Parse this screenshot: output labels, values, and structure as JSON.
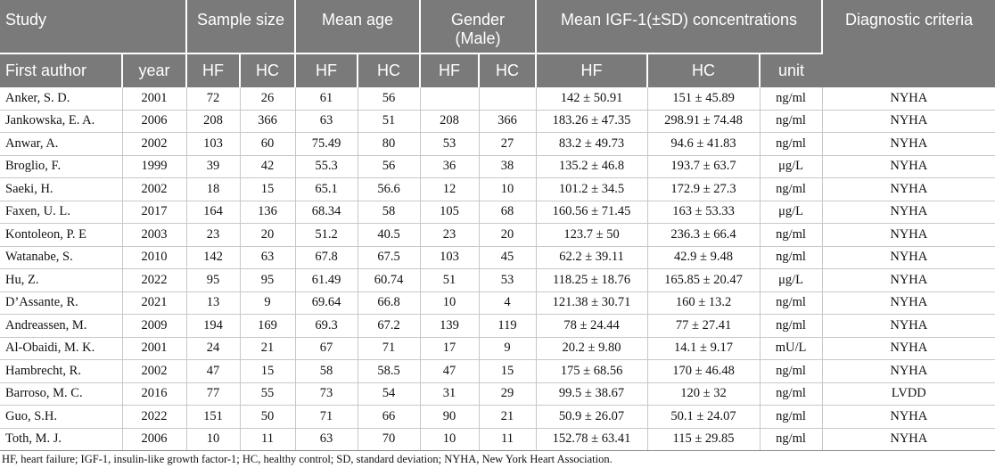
{
  "header": {
    "study": "Study",
    "sample_size": "Sample size",
    "mean_age": "Mean age",
    "gender": "Gender (Male)",
    "igf": "Mean IGF-1(±SD) concentrations",
    "diagnostic": "Diagnostic criteria",
    "first_author": "First author",
    "year": "year",
    "hf": "HF",
    "hc": "HC",
    "unit": "unit"
  },
  "rows": [
    {
      "author": "Anker, S. D.",
      "year": "2001",
      "ss_hf": "72",
      "ss_hc": "26",
      "age_hf": "61",
      "age_hc": "56",
      "g_hf": "",
      "g_hc": "",
      "igf_hf": "142 ± 50.91",
      "igf_hc": "151 ± 45.89",
      "unit": "ng/ml",
      "diag": "NYHA"
    },
    {
      "author": "Jankowska, E. A.",
      "year": "2006",
      "ss_hf": "208",
      "ss_hc": "366",
      "age_hf": "63",
      "age_hc": "51",
      "g_hf": "208",
      "g_hc": "366",
      "igf_hf": "183.26 ± 47.35",
      "igf_hc": "298.91 ± 74.48",
      "unit": "ng/ml",
      "diag": "NYHA"
    },
    {
      "author": "Anwar, A.",
      "year": "2002",
      "ss_hf": "103",
      "ss_hc": "60",
      "age_hf": "75.49",
      "age_hc": "80",
      "g_hf": "53",
      "g_hc": "27",
      "igf_hf": "83.2 ± 49.73",
      "igf_hc": "94.6 ± 41.83",
      "unit": "ng/ml",
      "diag": "NYHA"
    },
    {
      "author": "Broglio, F.",
      "year": "1999",
      "ss_hf": "39",
      "ss_hc": "42",
      "age_hf": "55.3",
      "age_hc": "56",
      "g_hf": "36",
      "g_hc": "38",
      "igf_hf": "135.2 ± 46.8",
      "igf_hc": "193.7 ± 63.7",
      "unit": "μg/L",
      "diag": "NYHA"
    },
    {
      "author": "Saeki, H.",
      "year": "2002",
      "ss_hf": "18",
      "ss_hc": "15",
      "age_hf": "65.1",
      "age_hc": "56.6",
      "g_hf": "12",
      "g_hc": "10",
      "igf_hf": "101.2 ± 34.5",
      "igf_hc": "172.9 ± 27.3",
      "unit": "ng/ml",
      "diag": "NYHA"
    },
    {
      "author": "Faxen, U. L.",
      "year": "2017",
      "ss_hf": "164",
      "ss_hc": "136",
      "age_hf": "68.34",
      "age_hc": "58",
      "g_hf": "105",
      "g_hc": "68",
      "igf_hf": "160.56 ± 71.45",
      "igf_hc": "163 ± 53.33",
      "unit": "μg/L",
      "diag": "NYHA"
    },
    {
      "author": "Kontoleon, P. E",
      "year": "2003",
      "ss_hf": "23",
      "ss_hc": "20",
      "age_hf": "51.2",
      "age_hc": "40.5",
      "g_hf": "23",
      "g_hc": "20",
      "igf_hf": "123.7 ± 50",
      "igf_hc": "236.3 ± 66.4",
      "unit": "ng/ml",
      "diag": "NYHA"
    },
    {
      "author": "Watanabe, S.",
      "year": "2010",
      "ss_hf": "142",
      "ss_hc": "63",
      "age_hf": "67.8",
      "age_hc": "67.5",
      "g_hf": "103",
      "g_hc": "45",
      "igf_hf": "62.2 ± 39.11",
      "igf_hc": "42.9 ± 9.48",
      "unit": "ng/ml",
      "diag": "NYHA"
    },
    {
      "author": "Hu, Z.",
      "year": "2022",
      "ss_hf": "95",
      "ss_hc": "95",
      "age_hf": "61.49",
      "age_hc": "60.74",
      "g_hf": "51",
      "g_hc": "53",
      "igf_hf": "118.25 ± 18.76",
      "igf_hc": "165.85 ± 20.47",
      "unit": "μg/L",
      "diag": "NYHA"
    },
    {
      "author": "D’Assante, R.",
      "year": "2021",
      "ss_hf": "13",
      "ss_hc": "9",
      "age_hf": "69.64",
      "age_hc": "66.8",
      "g_hf": "10",
      "g_hc": "4",
      "igf_hf": "121.38 ± 30.71",
      "igf_hc": "160 ± 13.2",
      "unit": "ng/ml",
      "diag": "NYHA"
    },
    {
      "author": "Andreassen, M.",
      "year": "2009",
      "ss_hf": "194",
      "ss_hc": "169",
      "age_hf": "69.3",
      "age_hc": "67.2",
      "g_hf": "139",
      "g_hc": "119",
      "igf_hf": "78 ± 24.44",
      "igf_hc": "77 ± 27.41",
      "unit": "ng/ml",
      "diag": "NYHA"
    },
    {
      "author": "Al-Obaidi, M. K.",
      "year": "2001",
      "ss_hf": "24",
      "ss_hc": "21",
      "age_hf": "67",
      "age_hc": "71",
      "g_hf": "17",
      "g_hc": "9",
      "igf_hf": "20.2 ± 9.80",
      "igf_hc": "14.1 ± 9.17",
      "unit": "mU/L",
      "diag": "NYHA"
    },
    {
      "author": "Hambrecht, R.",
      "year": "2002",
      "ss_hf": "47",
      "ss_hc": "15",
      "age_hf": "58",
      "age_hc": "58.5",
      "g_hf": "47",
      "g_hc": "15",
      "igf_hf": "175 ± 68.56",
      "igf_hc": "170 ± 46.48",
      "unit": "ng/ml",
      "diag": "NYHA"
    },
    {
      "author": "Barroso, M. C.",
      "year": "2016",
      "ss_hf": "77",
      "ss_hc": "55",
      "age_hf": "73",
      "age_hc": "54",
      "g_hf": "31",
      "g_hc": "29",
      "igf_hf": "99.5 ± 38.67",
      "igf_hc": "120 ± 32",
      "unit": "ng/ml",
      "diag": "LVDD"
    },
    {
      "author": "Guo, S.H.",
      "year": "2022",
      "ss_hf": "151",
      "ss_hc": "50",
      "age_hf": "71",
      "age_hc": "66",
      "g_hf": "90",
      "g_hc": "21",
      "igf_hf": "50.9 ± 26.07",
      "igf_hc": "50.1 ± 24.07",
      "unit": "ng/ml",
      "diag": "NYHA"
    },
    {
      "author": "Toth, M. J.",
      "year": "2006",
      "ss_hf": "10",
      "ss_hc": "11",
      "age_hf": "63",
      "age_hc": "70",
      "g_hf": "10",
      "g_hc": "11",
      "igf_hf": "152.78 ± 63.41",
      "igf_hc": "115 ± 29.85",
      "unit": "ng/ml",
      "diag": "NYHA"
    }
  ],
  "footnote": "HF, heart failure; IGF-1, insulin-like growth factor-1; HC, healthy control; SD, standard deviation; NYHA, New York Heart Association."
}
